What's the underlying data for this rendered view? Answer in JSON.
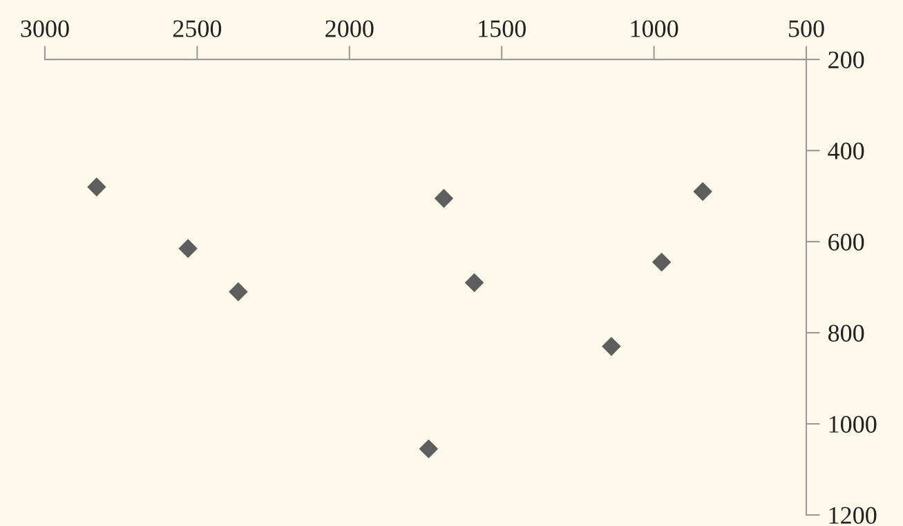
{
  "chart_data": {
    "type": "scatter",
    "x": [
      2830,
      2530,
      2365,
      1690,
      1740,
      1590,
      1140,
      975,
      840
    ],
    "values": [
      480,
      615,
      710,
      505,
      1055,
      690,
      830,
      645,
      490
    ],
    "color": "#5e5e5e",
    "marker": "diamond",
    "xlim": [
      3000,
      500
    ],
    "xticks": [
      3000,
      2500,
      2000,
      1500,
      1000,
      500
    ],
    "ylim": [
      1200,
      200
    ],
    "yticks": [
      200,
      400,
      600,
      800,
      1000,
      1200
    ],
    "grid": false
  }
}
